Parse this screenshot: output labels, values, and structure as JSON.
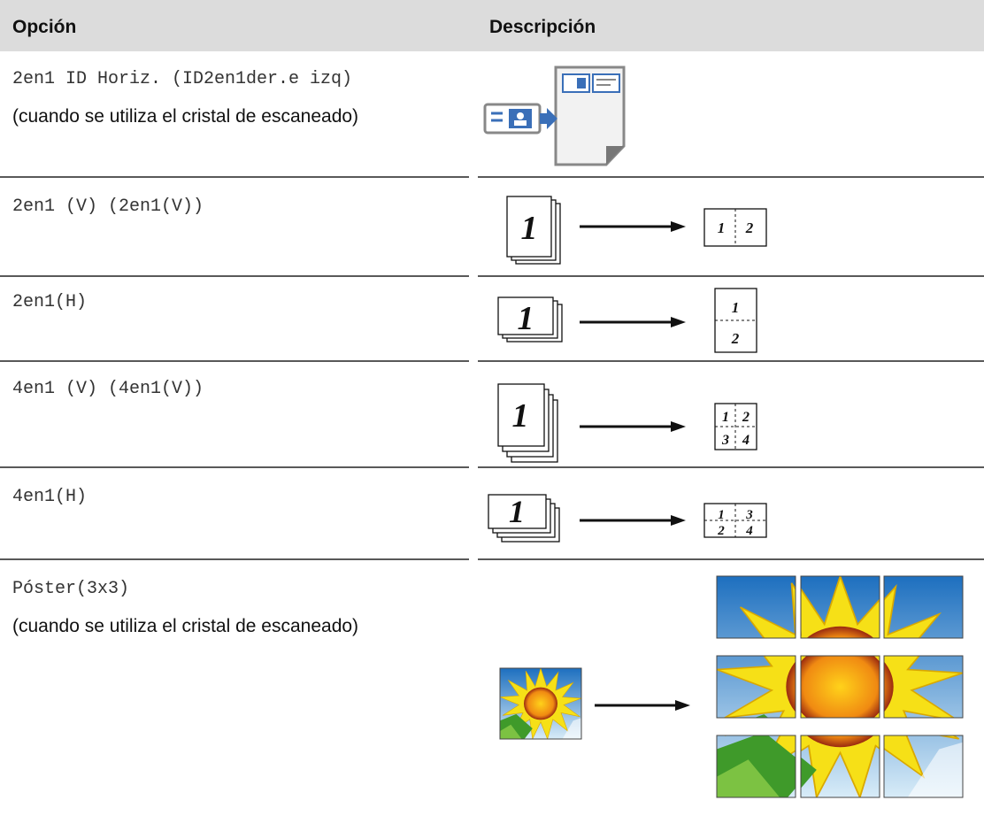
{
  "header": {
    "option": "Opción",
    "description": "Descripción"
  },
  "rows": [
    {
      "option": "2en1 ID Horiz. (ID2en1der.e izq)",
      "note": "(cuando se utiliza el cristal de escaneado)"
    },
    {
      "option": "2en1 (V) (2en1(V))",
      "figure": {
        "source": "1",
        "result": [
          "1",
          "2"
        ]
      }
    },
    {
      "option": "2en1(H)",
      "figure": {
        "source": "1",
        "result": [
          "1",
          "2"
        ]
      }
    },
    {
      "option": "4en1 (V) (4en1(V))",
      "figure": {
        "source": "1",
        "result": [
          "1",
          "2",
          "3",
          "4"
        ]
      }
    },
    {
      "option": "4en1(H)",
      "figure": {
        "source": "1",
        "result": [
          "1",
          "3",
          "2",
          "4"
        ]
      }
    },
    {
      "option": "Póster(3x3)",
      "note": "(cuando se utiliza el cristal de escaneado)"
    }
  ]
}
